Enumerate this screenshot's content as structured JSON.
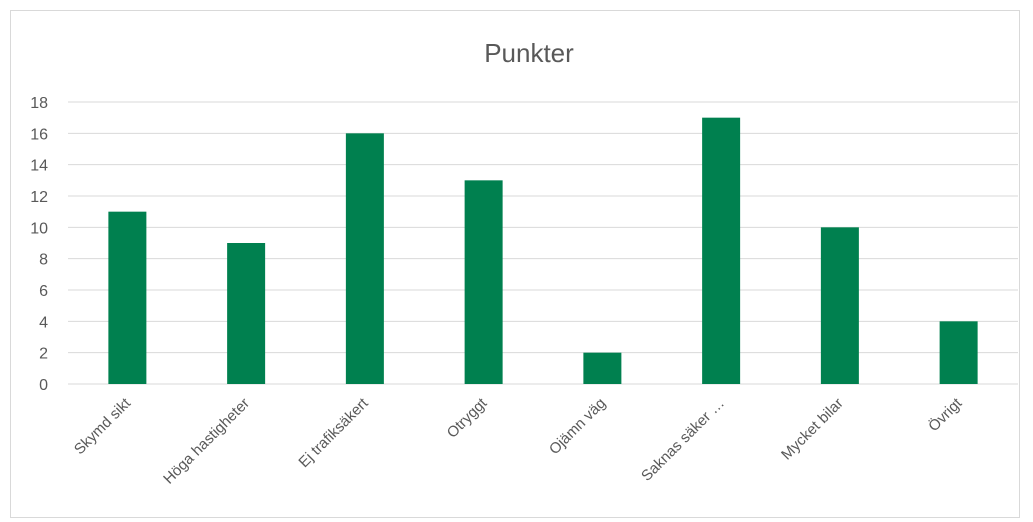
{
  "chart_data": {
    "type": "bar",
    "title": "Punkter",
    "categories": [
      "Skymd sikt",
      "Höga hastigheter",
      "Ej trafiksäkert",
      "Otryggt",
      "Ojämn väg",
      "Saknas säker …",
      "Mycket bilar",
      "Övrigt"
    ],
    "values": [
      11,
      9,
      16,
      13,
      2,
      17,
      10,
      4
    ],
    "ylim": [
      0,
      18
    ],
    "yticks": [
      0,
      2,
      4,
      6,
      8,
      10,
      12,
      14,
      16,
      18
    ],
    "grid": true,
    "legend": "none",
    "bar_color": "#00804f",
    "grid_color": "#d9d9d9",
    "axis_color": "#d9d9d9",
    "text_color": "#595959"
  }
}
